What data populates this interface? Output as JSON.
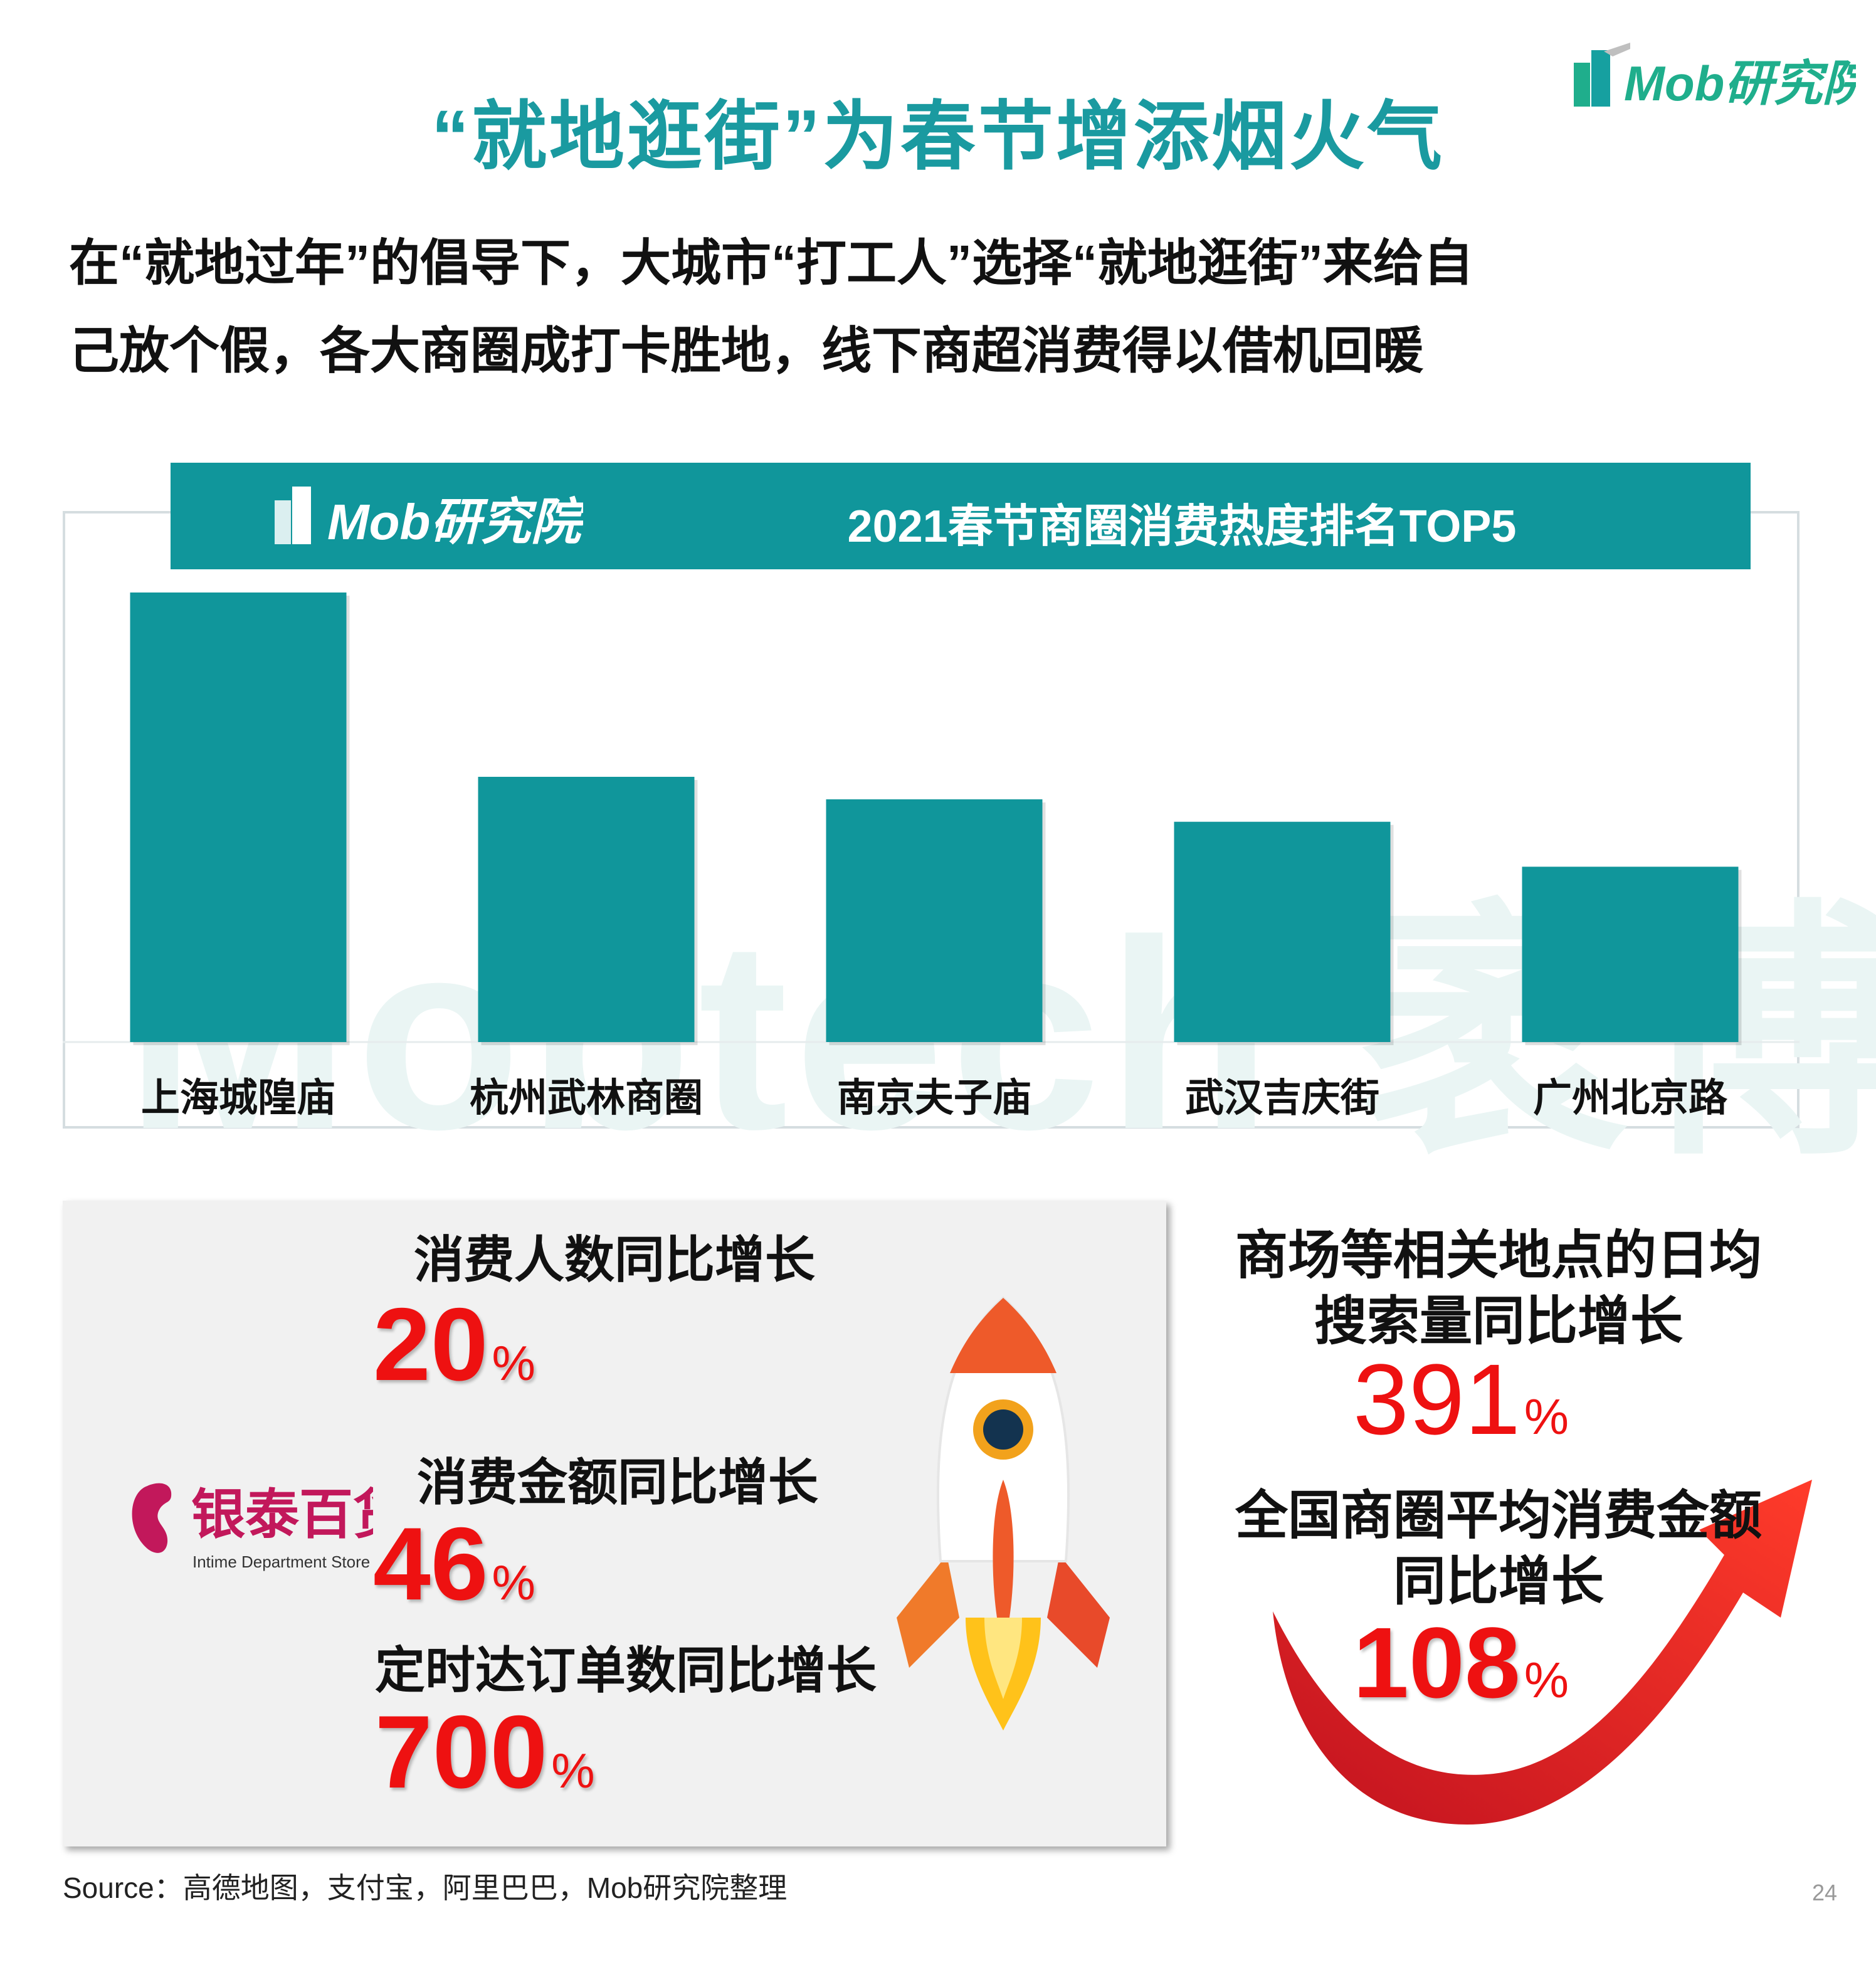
{
  "brand": {
    "logo_text": "Mob研究院"
  },
  "title": "“就地逛街”为春节增添烟火气",
  "lead": {
    "line1": "在“就地过年”的倡导下，大城市“打工人”选择“就地逛街”来给自",
    "line2": "己放个假，各大商圈成打卡胜地，线下商超消费得以借机回暖"
  },
  "chart_data": {
    "type": "bar",
    "title": "2021春节商圈消费热度排名TOP5",
    "categories": [
      "上海城隍庙",
      "杭州武林商圈",
      "南京夫子庙",
      "武汉吉庆街",
      "广州北京路"
    ],
    "values": [
      100,
      59,
      54,
      49,
      39
    ],
    "ylim": [
      0,
      100
    ],
    "xlabel": "",
    "ylabel": "",
    "grid": false,
    "bar_color": "#10969b"
  },
  "watermark": "Mobtech 袤博",
  "intime": {
    "logo_text": "银泰百货",
    "logo_subtext": "Intime Department Store",
    "stats": [
      {
        "label": "消费人数同比增长",
        "value": "20",
        "unit": "%"
      },
      {
        "label": "消费金额同比增长",
        "value": "46",
        "unit": "%"
      },
      {
        "label": "定时达订单数同比增长",
        "value": "700",
        "unit": "%"
      }
    ]
  },
  "right_stats": {
    "search": {
      "label_line1": "商场等相关地点的日均",
      "label_line2": "搜索量同比增长",
      "value": "391",
      "unit": "%"
    },
    "national": {
      "label_line1": "全国商圈平均消费金额",
      "label_line2": "同比增长",
      "value": "108",
      "unit": "%"
    }
  },
  "source": "Source：高德地图，支付宝，阿里巴巴，Mob研究院整理",
  "page_number": "24",
  "colors": {
    "accent": "#10969b",
    "title": "#1a9aa0",
    "highlight": "#ee1111",
    "logo_green": "#1fae8c"
  }
}
